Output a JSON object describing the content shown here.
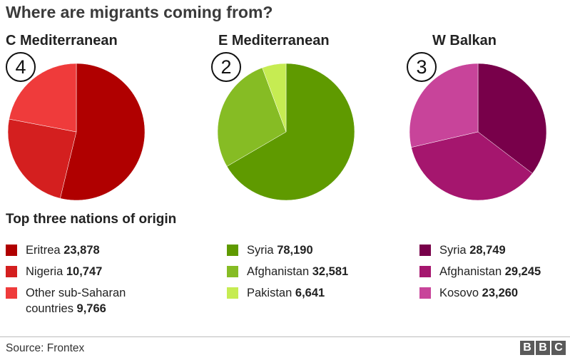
{
  "title": "Where are migrants coming from?",
  "subtitle": "Top three nations of origin",
  "source": "Source: Frontex",
  "logo_letters": [
    "B",
    "B",
    "C"
  ],
  "chart_data": [
    {
      "type": "pie",
      "title": "C Mediterranean",
      "badge": "4",
      "categories": [
        "Eritrea",
        "Nigeria",
        "Other sub-Saharan countries"
      ],
      "legend_lines": [
        [
          "Eritrea"
        ],
        [
          "Nigeria"
        ],
        [
          "Other sub-Saharan",
          "countries"
        ]
      ],
      "values": [
        23878,
        10747,
        9766
      ],
      "value_labels": [
        "23,878",
        "10,747",
        "9,766"
      ],
      "colors": [
        "#b00000",
        "#d41f1f",
        "#ef3b3b"
      ]
    },
    {
      "type": "pie",
      "title": "E Mediterranean",
      "badge": "2",
      "categories": [
        "Syria",
        "Afghanistan",
        "Pakistan"
      ],
      "legend_lines": [
        [
          "Syria"
        ],
        [
          "Afghanistan"
        ],
        [
          "Pakistan"
        ]
      ],
      "values": [
        78190,
        32581,
        6641
      ],
      "value_labels": [
        "78,190",
        "32,581",
        "6,641"
      ],
      "colors": [
        "#5f9a00",
        "#86bc24",
        "#c6ec52"
      ]
    },
    {
      "type": "pie",
      "title": "W Balkan",
      "badge": "3",
      "categories": [
        "Syria",
        "Afghanistan",
        "Kosovo"
      ],
      "legend_lines": [
        [
          "Syria"
        ],
        [
          "Afghanistan"
        ],
        [
          "Kosovo"
        ]
      ],
      "values": [
        28749,
        29245,
        23260
      ],
      "value_labels": [
        "28,749",
        "29,245",
        "23,260"
      ],
      "colors": [
        "#78004a",
        "#a5166e",
        "#c8449a"
      ]
    }
  ]
}
